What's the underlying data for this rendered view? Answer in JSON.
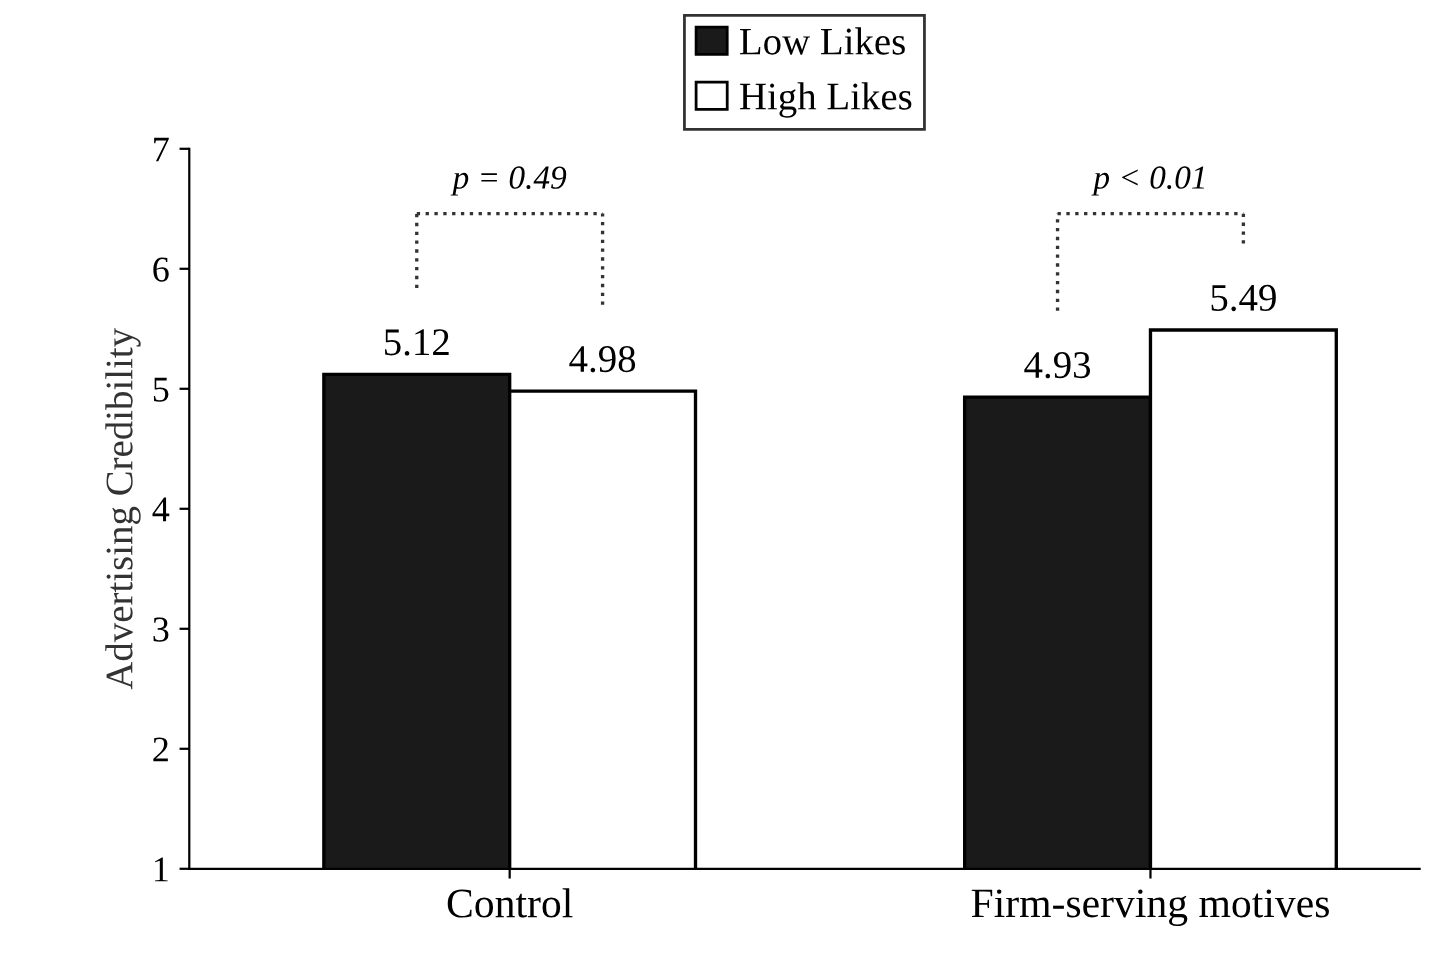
{
  "chart_data": {
    "type": "bar",
    "ylabel": "Advertising Credibility",
    "categories": [
      "Control",
      "Firm-serving motives"
    ],
    "series": [
      {
        "name": "Low Likes",
        "color": "#1a1a1a",
        "values": [
          5.12,
          4.93
        ]
      },
      {
        "name": "High Likes",
        "color": "#ffffff",
        "values": [
          4.98,
          5.49
        ]
      }
    ],
    "ylim": [
      1,
      7
    ],
    "yticks": [
      1,
      2,
      3,
      4,
      5,
      6,
      7
    ],
    "data_labels": true,
    "grid": false,
    "legend": "top",
    "annotations": [
      "p = 0.49",
      "p < 0.01"
    ]
  }
}
